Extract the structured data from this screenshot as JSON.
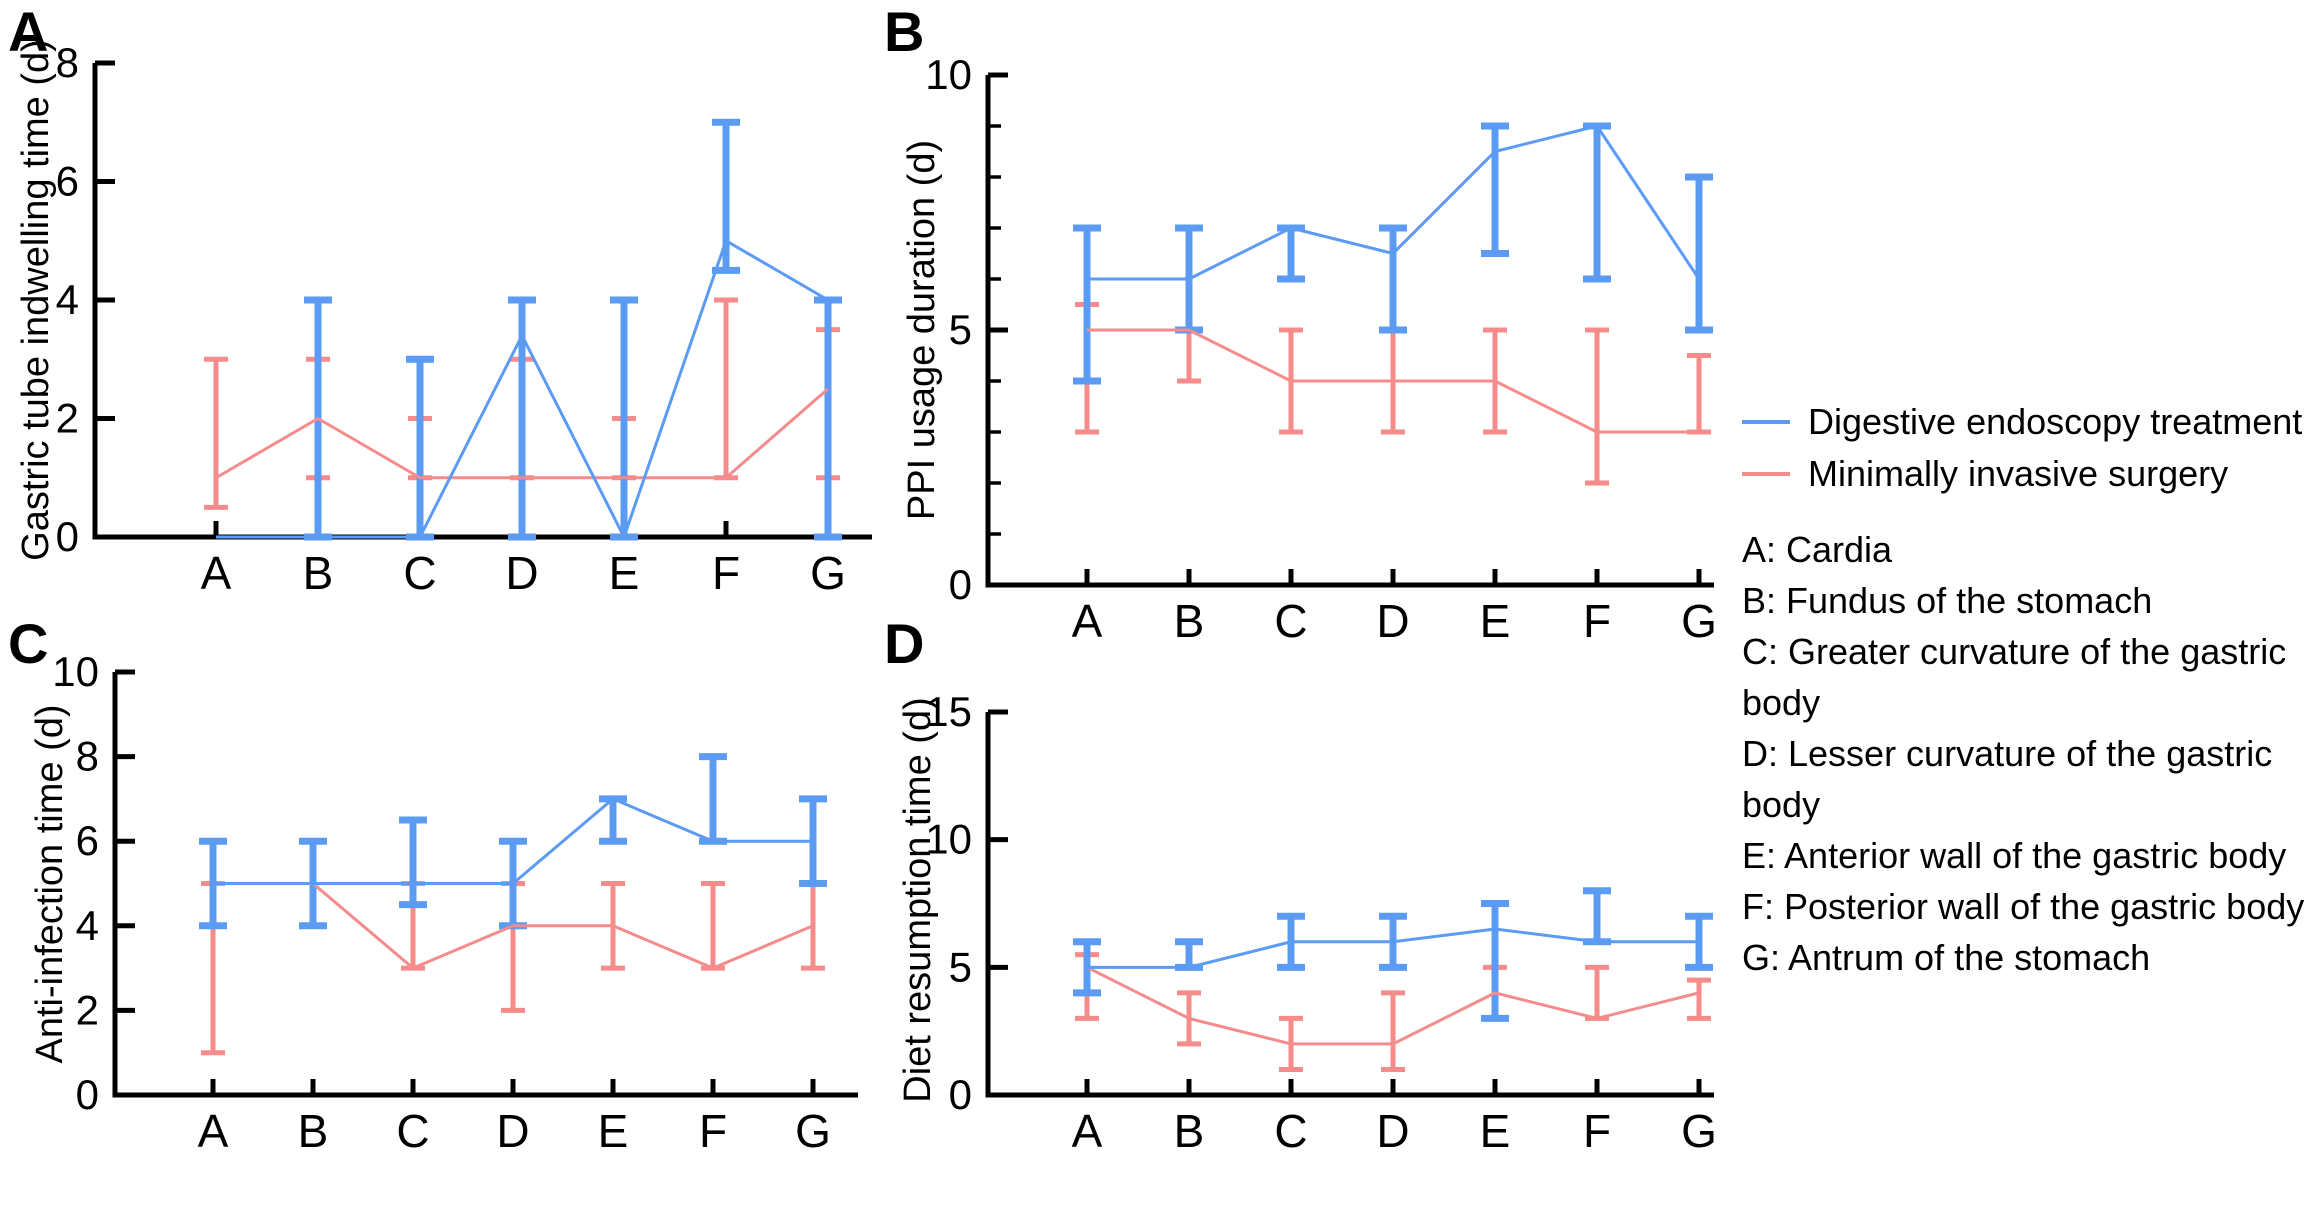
{
  "colors": {
    "blue": "#5B9BF3",
    "red": "#F58B8B",
    "axis": "#000000"
  },
  "legend": {
    "items": [
      {
        "label": "Digestive endoscopy treatment",
        "color_key": "blue"
      },
      {
        "label": "Minimally invasive surgery",
        "color_key": "red"
      }
    ],
    "key": [
      "A: Cardia",
      "B: Fundus of the stomach",
      "C: Greater curvature of the gastric body",
      "D: Lesser curvature of the gastric body",
      "E: Anterior wall of the gastric body",
      "F: Posterior wall of the gastric body",
      "G: Antrum of the stomach"
    ]
  },
  "chart_data": [
    {
      "panel_label": "A",
      "type": "line",
      "ylabel": "Gastric tube indwelling time (d)",
      "ylim": [
        0,
        8
      ],
      "yticks": [
        0,
        2,
        4,
        6,
        8
      ],
      "minor_tick_step": null,
      "categories": [
        "A",
        "B",
        "C",
        "D",
        "E",
        "F",
        "G"
      ],
      "series": [
        {
          "name": "Digestive endoscopy treatment",
          "color_key": "blue",
          "values": [
            0,
            0,
            0,
            3.4,
            0,
            5,
            4
          ],
          "error_bars": [
            null,
            [
              0,
              4
            ],
            [
              0,
              3
            ],
            [
              0,
              4
            ],
            [
              0,
              4
            ],
            [
              4.5,
              7
            ],
            [
              0,
              4
            ]
          ]
        },
        {
          "name": "Minimally invasive surgery",
          "color_key": "red",
          "values": [
            1,
            2,
            1,
            1,
            1,
            1,
            2.5
          ],
          "error_bars": [
            [
              0.5,
              3
            ],
            [
              1,
              3
            ],
            [
              1,
              2
            ],
            [
              1,
              3
            ],
            [
              1,
              2
            ],
            [
              1,
              4
            ],
            [
              1,
              3.5
            ]
          ]
        }
      ]
    },
    {
      "panel_label": "B",
      "type": "line",
      "ylabel": "PPI usage duration (d)",
      "ylim": [
        0,
        10
      ],
      "yticks": [
        0,
        5,
        10
      ],
      "minor_tick_step": 1,
      "categories": [
        "A",
        "B",
        "C",
        "D",
        "E",
        "F",
        "G"
      ],
      "series": [
        {
          "name": "Digestive endoscopy treatment",
          "color_key": "blue",
          "values": [
            6,
            6,
            7,
            6.5,
            8.5,
            9,
            6
          ],
          "error_bars": [
            [
              4,
              7
            ],
            [
              5,
              7
            ],
            [
              6,
              7
            ],
            [
              5,
              7
            ],
            [
              6.5,
              9
            ],
            [
              6,
              9
            ],
            [
              5,
              8
            ]
          ]
        },
        {
          "name": "Minimally invasive surgery",
          "color_key": "red",
          "values": [
            5,
            5,
            4,
            4,
            4,
            3,
            3
          ],
          "error_bars": [
            [
              3,
              5.5
            ],
            [
              4,
              5
            ],
            [
              3,
              5
            ],
            [
              3,
              5
            ],
            [
              3,
              5
            ],
            [
              2,
              5
            ],
            [
              3,
              4.5
            ]
          ]
        }
      ]
    },
    {
      "panel_label": "C",
      "type": "line",
      "ylabel": "Anti-infection time (d)",
      "ylim": [
        0,
        10
      ],
      "yticks": [
        0,
        2,
        4,
        6,
        8,
        10
      ],
      "minor_tick_step": null,
      "categories": [
        "A",
        "B",
        "C",
        "D",
        "E",
        "F",
        "G"
      ],
      "series": [
        {
          "name": "Digestive endoscopy treatment",
          "color_key": "blue",
          "values": [
            5,
            5,
            5,
            5,
            7,
            6,
            6
          ],
          "error_bars": [
            [
              4,
              6
            ],
            [
              4,
              6
            ],
            [
              4.5,
              6.5
            ],
            [
              4,
              6
            ],
            [
              6,
              7
            ],
            [
              6,
              8
            ],
            [
              5,
              7
            ]
          ]
        },
        {
          "name": "Minimally invasive surgery",
          "color_key": "red",
          "values": [
            5,
            5,
            3,
            4,
            4,
            3,
            4
          ],
          "error_bars": [
            [
              1,
              5
            ],
            null,
            [
              3,
              5
            ],
            [
              2,
              5
            ],
            [
              3,
              5
            ],
            [
              3,
              5
            ],
            [
              3,
              5
            ]
          ]
        }
      ]
    },
    {
      "panel_label": "D",
      "type": "line",
      "ylabel": "Diet resumption time (d)",
      "ylim": [
        0,
        15
      ],
      "yticks": [
        0,
        5,
        10,
        15
      ],
      "minor_tick_step": null,
      "categories": [
        "A",
        "B",
        "C",
        "D",
        "E",
        "F",
        "G"
      ],
      "series": [
        {
          "name": "Digestive endoscopy treatment",
          "color_key": "blue",
          "values": [
            5,
            5,
            6,
            6,
            6.5,
            6,
            6
          ],
          "error_bars": [
            [
              4,
              6
            ],
            [
              5,
              6
            ],
            [
              5,
              7
            ],
            [
              5,
              7
            ],
            [
              3,
              7.5
            ],
            [
              6,
              8
            ],
            [
              5,
              7
            ]
          ]
        },
        {
          "name": "Minimally invasive surgery",
          "color_key": "red",
          "values": [
            5,
            3,
            2,
            2,
            4,
            3,
            4
          ],
          "error_bars": [
            [
              3,
              5.5
            ],
            [
              2,
              4
            ],
            [
              1,
              3
            ],
            [
              1,
              4
            ],
            [
              3,
              5
            ],
            [
              3,
              5
            ],
            [
              3,
              4.5
            ]
          ]
        }
      ]
    }
  ]
}
